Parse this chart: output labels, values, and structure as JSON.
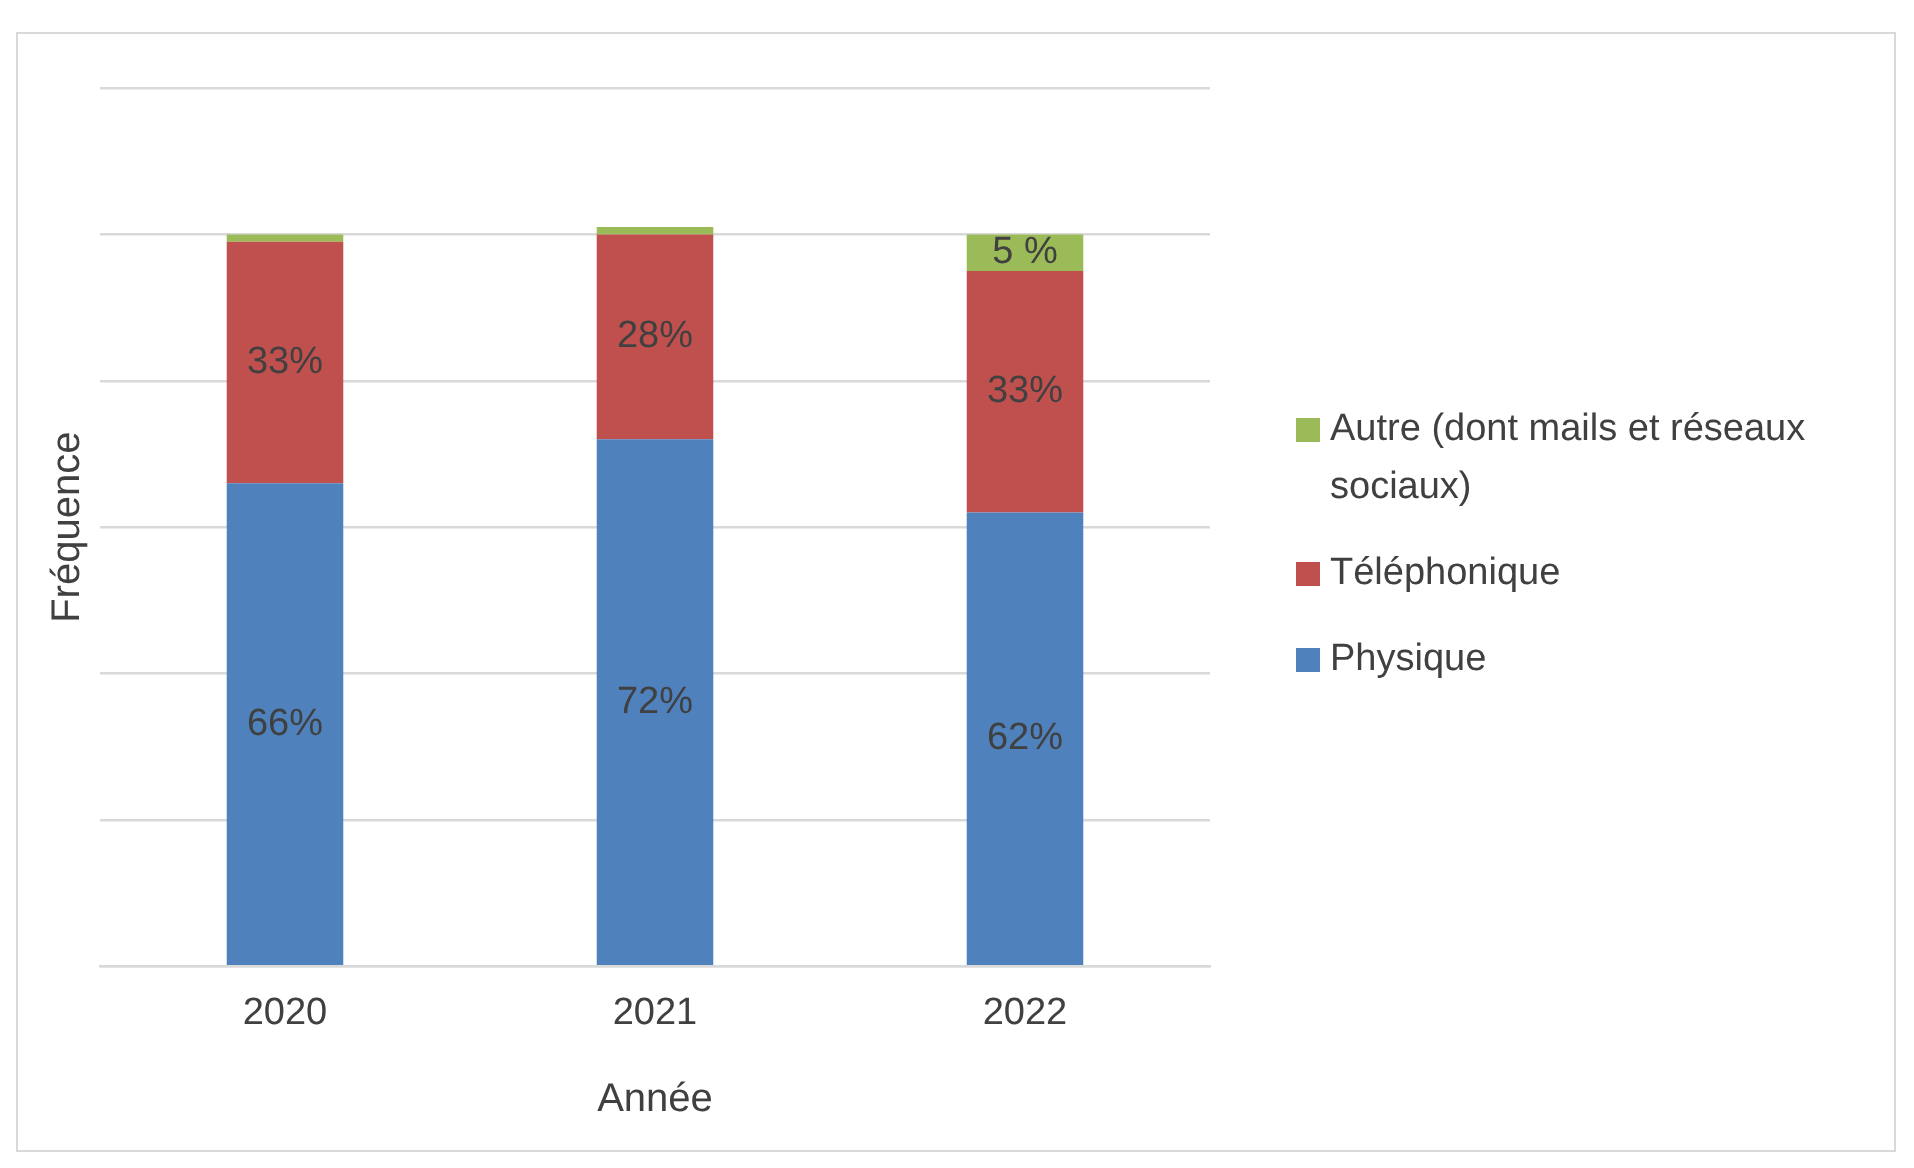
{
  "chart_data": {
    "type": "bar",
    "stacked": true,
    "xlabel": "Année",
    "ylabel": "Fréquence",
    "categories": [
      "2020",
      "2021",
      "2022"
    ],
    "series": [
      {
        "name": "Physique",
        "color": "#4f81bd",
        "values": [
          66,
          72,
          62
        ],
        "value_labels": [
          "66%",
          "72%",
          "62%"
        ]
      },
      {
        "name": "Téléphonique",
        "color": "#c0504d",
        "values": [
          33,
          28,
          33
        ],
        "value_labels": [
          "33%",
          "28%",
          "33%"
        ]
      },
      {
        "name": "Autre (dont mails et réseaux sociaux)",
        "color": "#9bbb59",
        "values": [
          1,
          1,
          5
        ],
        "value_labels": [
          null,
          null,
          "5 %"
        ]
      }
    ],
    "ylim": [
      0,
      120
    ],
    "yticks": [
      {
        "value": 0,
        "label": null
      },
      {
        "value": 20,
        "label": null
      },
      {
        "value": 40,
        "label": null
      },
      {
        "value": 60,
        "label": null
      },
      {
        "value": 80,
        "label": null
      },
      {
        "value": 100,
        "label": null
      },
      {
        "value": 120,
        "label": null
      }
    ],
    "tick_labels": "x",
    "grid": "y",
    "legend": "right"
  }
}
